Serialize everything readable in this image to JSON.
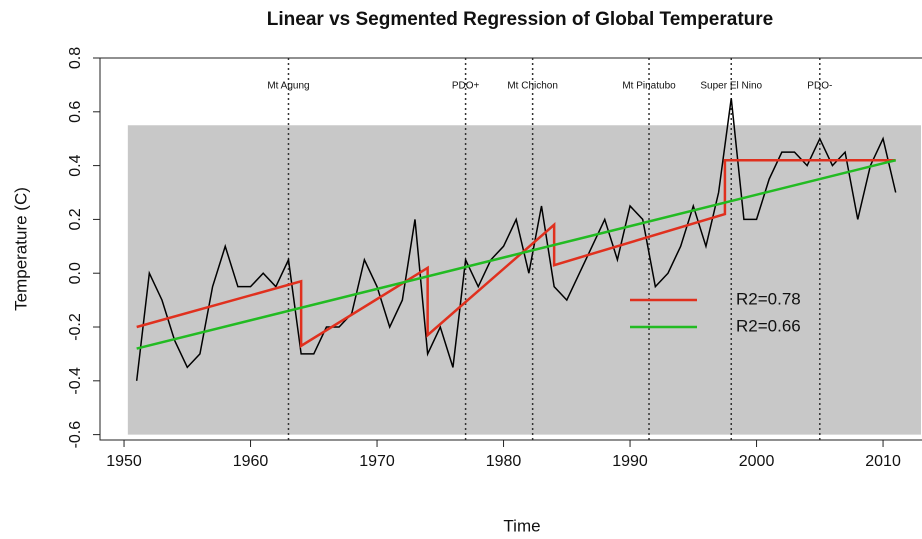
{
  "chart_data": {
    "type": "line",
    "title": "Linear vs Segmented Regression of Global Temperature",
    "x_label": "Time",
    "y_label": "Temperature (C)",
    "xlim": [
      1948.1,
      2013
    ],
    "ylim": [
      -0.62,
      0.8
    ],
    "xticks": [
      1950,
      1960,
      1970,
      1980,
      1990,
      2000,
      2010
    ],
    "yticks": [
      -0.6,
      -0.4,
      -0.2,
      {
        "value": 0,
        "label": "0.0"
      },
      0.2,
      0.4,
      0.6,
      0.8
    ],
    "band": {
      "color": "#c8c8c8",
      "x": [
        1950.3,
        2013
      ],
      "lower": [
        -0.6,
        -0.6
      ],
      "upper": [
        0.55,
        0.55
      ]
    },
    "events": [
      {
        "label": "Mt Agung",
        "x": 1963
      },
      {
        "label": "PDO+",
        "x": 1977
      },
      {
        "label": "Mt Chichon",
        "x": 1982.3
      },
      {
        "label": "Mt Pinatubo",
        "x": 1991.5
      },
      {
        "label": "Super El Nino",
        "x": 1998
      },
      {
        "label": "PDO-",
        "x": 2005
      }
    ],
    "series": [
      {
        "color": "#000000",
        "x": [
          1951,
          1952,
          1953,
          1954,
          1955,
          1956,
          1957,
          1958,
          1959,
          1960,
          1961,
          1962,
          1963,
          1964,
          1965,
          1966,
          1967,
          1968,
          1969,
          1970,
          1971,
          1972,
          1973,
          1974,
          1975,
          1976,
          1977,
          1978,
          1979,
          1980,
          1981,
          1982,
          1983,
          1984,
          1985,
          1986,
          1987,
          1988,
          1989,
          1990,
          1991,
          1992,
          1993,
          1994,
          1995,
          1996,
          1997,
          1998,
          1999,
          2000,
          2001,
          2002,
          2003,
          2004,
          2005,
          2006,
          2007,
          2008,
          2009,
          2010,
          2011
        ],
        "values": [
          -0.4,
          0.0,
          -0.1,
          -0.25,
          -0.35,
          -0.3,
          -0.05,
          0.1,
          -0.05,
          -0.05,
          0.0,
          -0.05,
          0.05,
          -0.3,
          -0.3,
          -0.2,
          -0.2,
          -0.15,
          0.05,
          -0.05,
          -0.2,
          -0.1,
          0.2,
          -0.3,
          -0.2,
          -0.35,
          0.05,
          -0.05,
          0.05,
          0.1,
          0.2,
          0.0,
          0.25,
          -0.05,
          -0.1,
          0.0,
          0.1,
          0.2,
          0.05,
          0.25,
          0.2,
          -0.05,
          0.0,
          0.1,
          0.25,
          0.1,
          0.3,
          0.65,
          0.2,
          0.2,
          0.35,
          0.45,
          0.45,
          0.4,
          0.5,
          0.4,
          0.45,
          0.2,
          0.4,
          0.5,
          0.3
        ]
      },
      {
        "name": "R2=0.78",
        "color": "#e0301e",
        "x": [
          1951,
          1964,
          1964,
          1974,
          1974,
          1984,
          1984,
          1997.5,
          1997.5,
          2011
        ],
        "values": [
          -0.2,
          -0.03,
          -0.27,
          0.02,
          -0.23,
          0.18,
          0.03,
          0.22,
          0.42,
          0.42
        ]
      },
      {
        "name": "R2=0.66",
        "color": "#22bb22",
        "x": [
          1951,
          2011
        ],
        "values": [
          -0.28,
          0.42
        ]
      }
    ]
  }
}
